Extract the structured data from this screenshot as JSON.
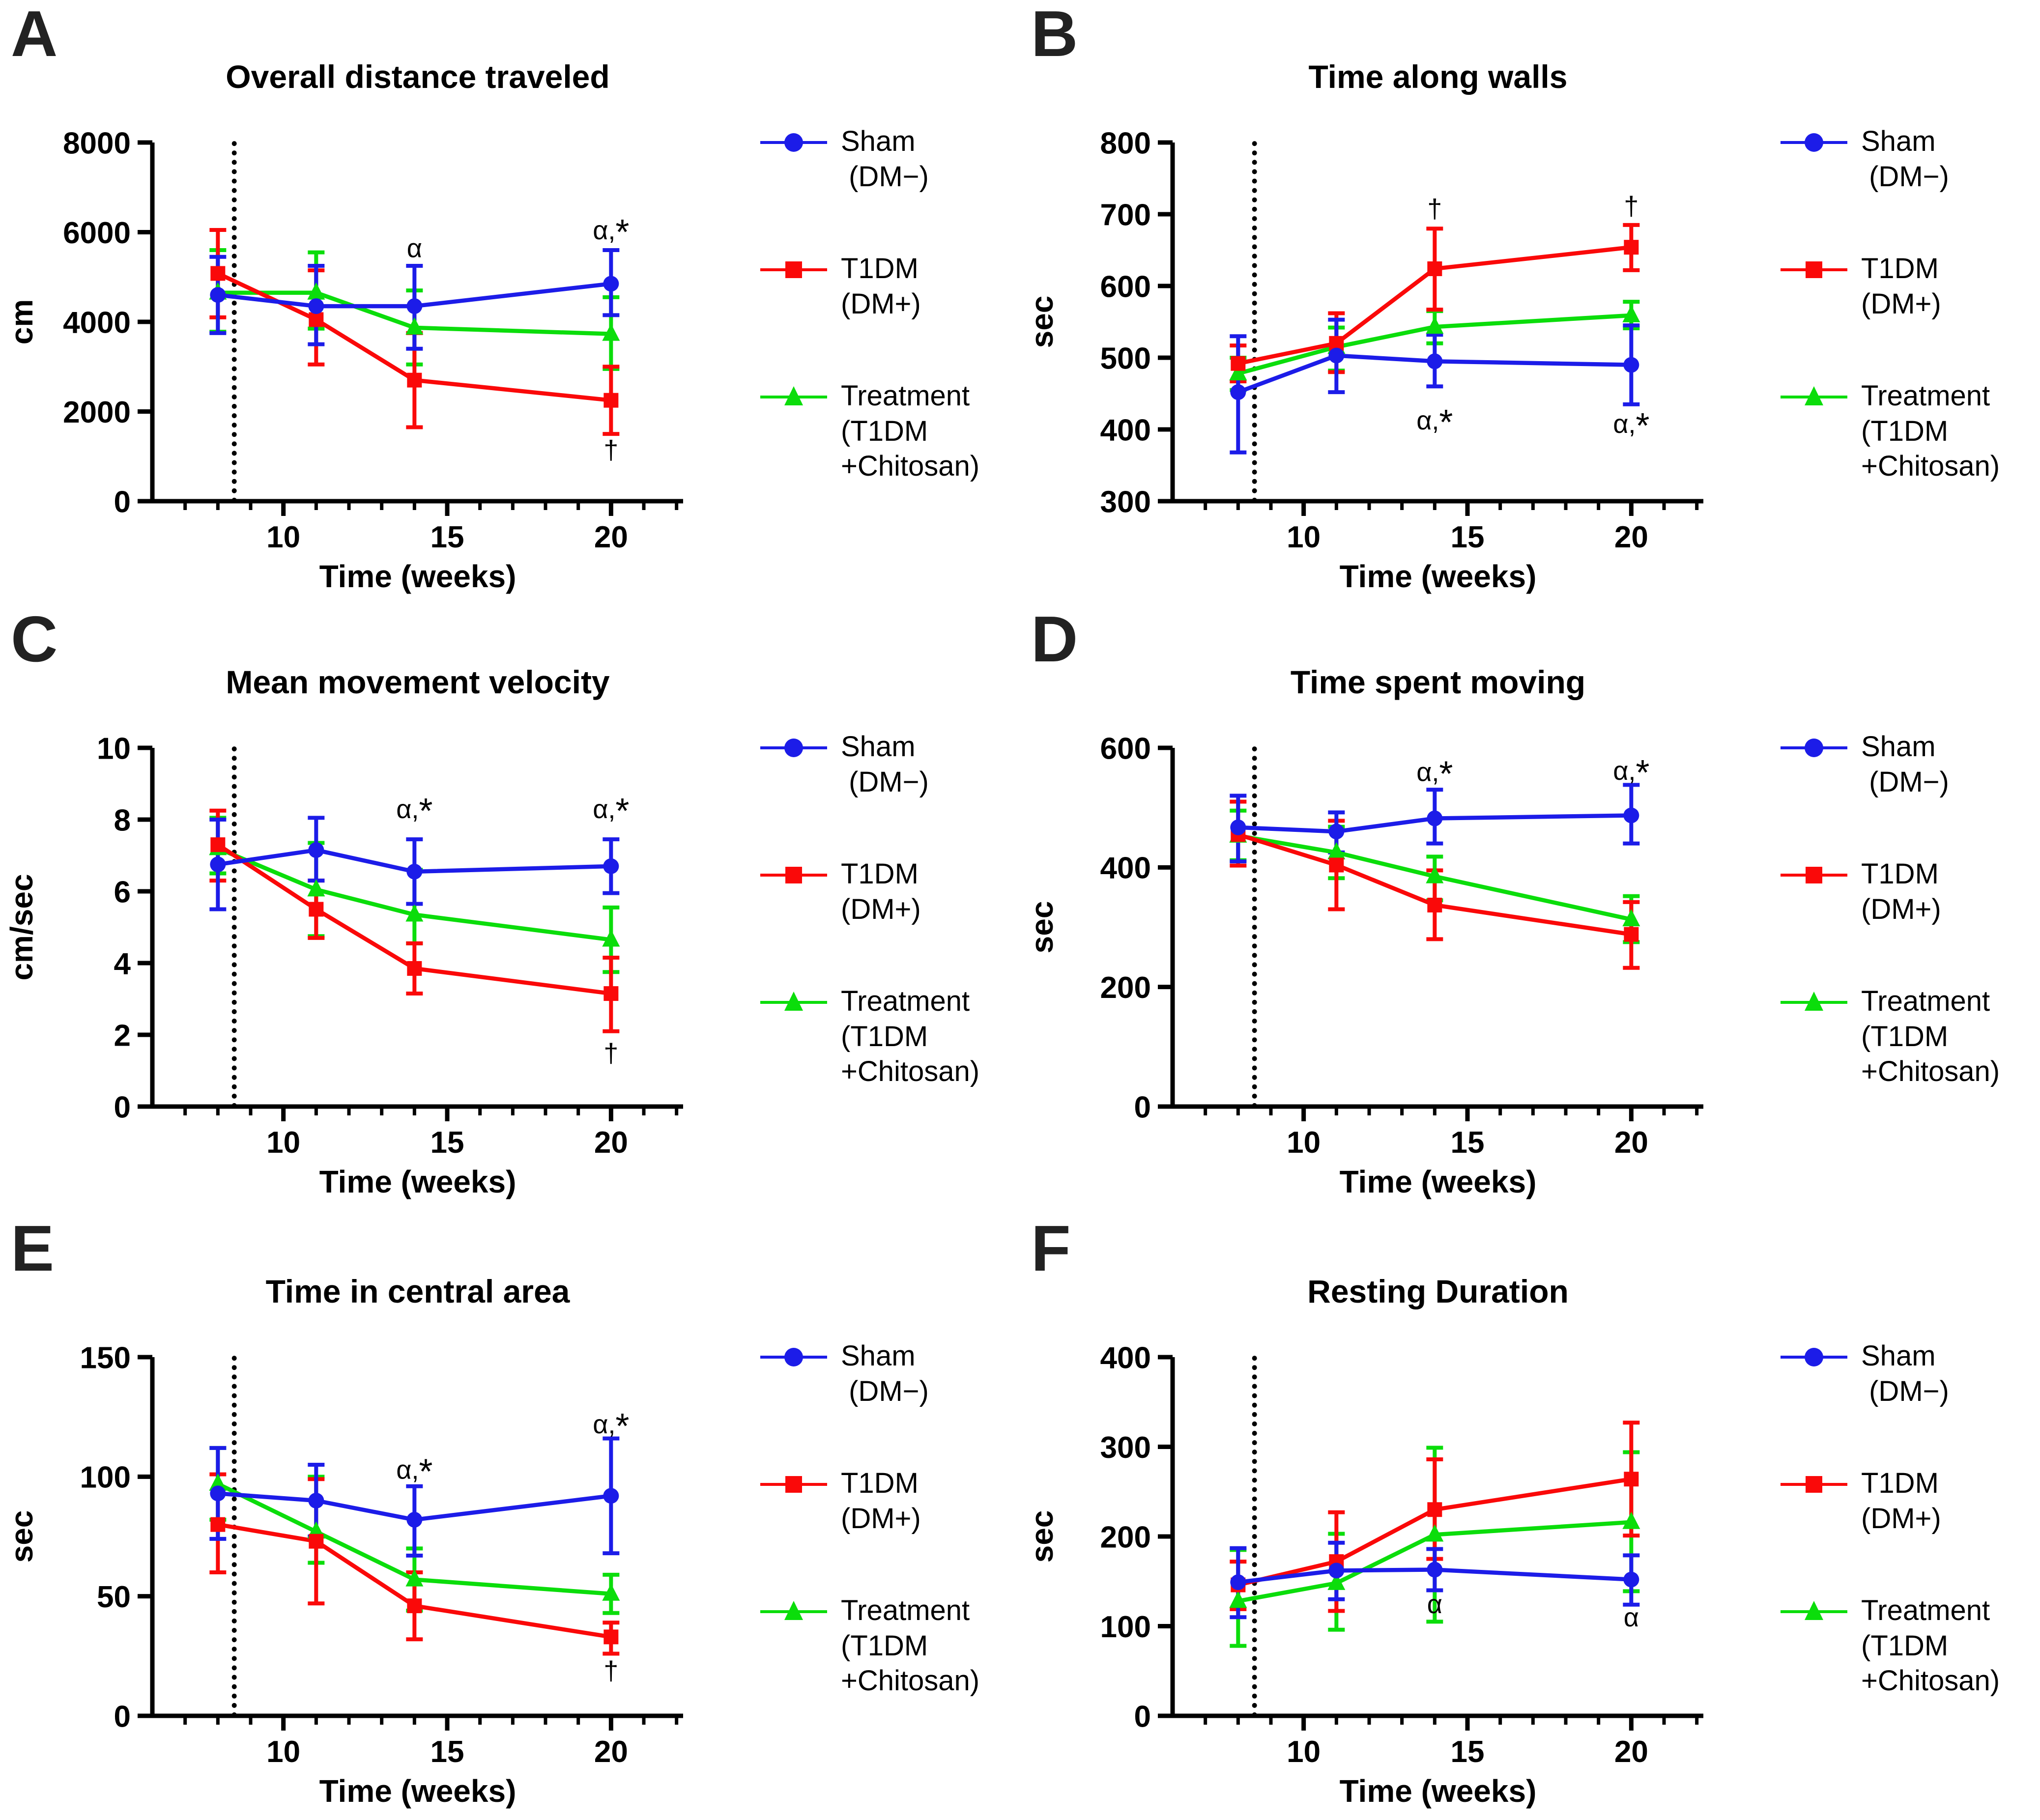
{
  "figure": {
    "background": "#ffffff",
    "axis_x": {
      "label": "Time (weeks)",
      "lim": [
        6.0,
        22.2
      ],
      "major_ticks": [
        10,
        15,
        20
      ],
      "minor_ticks": [
        7,
        8,
        9,
        11,
        12,
        13,
        14,
        16,
        17,
        18,
        19,
        21,
        22
      ],
      "dashed_line_x": 8.5
    },
    "colors": {
      "sham": "#1c1ce8",
      "t1dm": "#fa0909",
      "treatment": "#0bdd0b",
      "axis": "#000000"
    },
    "legend": {
      "position": "right",
      "entries": [
        {
          "id": "sham",
          "marker": "circle",
          "color": "#1c1ce8",
          "label_lines": [
            "Sham",
            " (DM−)"
          ]
        },
        {
          "id": "t1dm",
          "marker": "square",
          "color": "#fa0909",
          "label_lines": [
            "T1DM",
            "(DM+)"
          ]
        },
        {
          "id": "treatment",
          "marker": "triangle",
          "color": "#0bdd0b",
          "label_lines": [
            "Treatment",
            "(T1DM",
            "+Chitosan)"
          ]
        }
      ]
    }
  },
  "chart_data": [
    {
      "type": "line",
      "panel": "A",
      "title": "Overall distance traveled",
      "xlabel": "Time (weeks)",
      "ylabel": "cm",
      "ylim": [
        0,
        8000
      ],
      "yticks": [
        0,
        2000,
        4000,
        6000,
        8000
      ],
      "x": [
        8,
        11,
        14,
        20
      ],
      "series": [
        {
          "id": "sham",
          "name": "Sham (DM−)",
          "color": "#1c1ce8",
          "marker": "circle",
          "values": [
            4600,
            4350,
            4350,
            4850
          ],
          "err_lo": [
            3750,
            3500,
            3400,
            4150
          ],
          "err_hi": [
            5450,
            5250,
            5250,
            5600
          ]
        },
        {
          "id": "t1dm",
          "name": "T1DM (DM+)",
          "color": "#fa0909",
          "marker": "square",
          "values": [
            5080,
            4050,
            2700,
            2250
          ],
          "err_lo": [
            4100,
            3050,
            1650,
            1500
          ],
          "err_hi": [
            6050,
            5150,
            3750,
            3000
          ]
        },
        {
          "id": "treatment",
          "name": "Treatment (T1DM +Chitosan)",
          "color": "#0bdd0b",
          "marker": "triangle",
          "values": [
            4650,
            4650,
            3870,
            3730
          ],
          "err_lo": [
            3780,
            3850,
            3050,
            2950
          ],
          "err_hi": [
            5600,
            5550,
            4700,
            4550
          ]
        }
      ],
      "annotations": [
        {
          "x": 14,
          "y": 5650,
          "text": "α"
        },
        {
          "x": 20,
          "y": 6050,
          "text": "α,*"
        },
        {
          "x": 20,
          "y": 1150,
          "text": "†"
        }
      ]
    },
    {
      "type": "line",
      "panel": "B",
      "title": "Time along walls",
      "xlabel": "Time (weeks)",
      "ylabel": "sec",
      "ylim": [
        300,
        800
      ],
      "yticks": [
        300,
        400,
        500,
        600,
        700,
        800
      ],
      "x": [
        8,
        11,
        14,
        20
      ],
      "series": [
        {
          "id": "sham",
          "name": "Sham (DM−)",
          "color": "#1c1ce8",
          "marker": "circle",
          "values": [
            452,
            503,
            495,
            490
          ],
          "err_lo": [
            368,
            452,
            460,
            435
          ],
          "err_hi": [
            530,
            553,
            532,
            545
          ]
        },
        {
          "id": "t1dm",
          "name": "T1DM (DM+)",
          "color": "#fa0909",
          "marker": "square",
          "values": [
            492,
            520,
            624,
            654
          ],
          "err_lo": [
            467,
            480,
            567,
            622
          ],
          "err_hi": [
            517,
            562,
            680,
            685
          ]
        },
        {
          "id": "treatment",
          "name": "Treatment (T1DM +Chitosan)",
          "color": "#0bdd0b",
          "marker": "triangle",
          "values": [
            478,
            515,
            543,
            559
          ],
          "err_lo": [
            455,
            482,
            520,
            541
          ],
          "err_hi": [
            500,
            542,
            565,
            578
          ]
        }
      ],
      "annotations": [
        {
          "x": 14,
          "y": 708,
          "text": "†"
        },
        {
          "x": 20,
          "y": 712,
          "text": "†"
        },
        {
          "x": 14,
          "y": 413,
          "text": "α,*"
        },
        {
          "x": 20,
          "y": 408,
          "text": "α,*"
        }
      ]
    },
    {
      "type": "line",
      "panel": "C",
      "title": "Mean movement velocity",
      "xlabel": "Time (weeks)",
      "ylabel": "cm/sec",
      "ylim": [
        0,
        10
      ],
      "yticks": [
        0,
        2,
        4,
        6,
        8,
        10
      ],
      "x": [
        8,
        11,
        14,
        20
      ],
      "series": [
        {
          "id": "sham",
          "name": "Sham (DM−)",
          "color": "#1c1ce8",
          "marker": "circle",
          "values": [
            6.75,
            7.15,
            6.55,
            6.7
          ],
          "err_lo": [
            5.5,
            6.3,
            5.65,
            5.95
          ],
          "err_hi": [
            8.0,
            8.05,
            7.45,
            7.45
          ]
        },
        {
          "id": "t1dm",
          "name": "T1DM (DM+)",
          "color": "#fa0909",
          "marker": "square",
          "values": [
            7.3,
            5.5,
            3.85,
            3.15
          ],
          "err_lo": [
            6.3,
            4.7,
            3.15,
            2.1
          ],
          "err_hi": [
            8.25,
            6.3,
            4.55,
            4.15
          ]
        },
        {
          "id": "treatment",
          "name": "Treatment (T1DM +Chitosan)",
          "color": "#0bdd0b",
          "marker": "triangle",
          "values": [
            7.2,
            6.05,
            5.35,
            4.65
          ],
          "err_lo": [
            6.5,
            4.75,
            4.55,
            3.75
          ],
          "err_hi": [
            8.05,
            7.35,
            6.6,
            5.55
          ]
        }
      ],
      "annotations": [
        {
          "x": 14,
          "y": 8.3,
          "text": "α,*"
        },
        {
          "x": 20,
          "y": 8.3,
          "text": "α,*"
        },
        {
          "x": 20,
          "y": 1.5,
          "text": "†"
        }
      ]
    },
    {
      "type": "line",
      "panel": "D",
      "title": "Time spent moving",
      "xlabel": "Time (weeks)",
      "ylabel": "sec",
      "ylim": [
        0,
        600
      ],
      "yticks": [
        0,
        200,
        400,
        600
      ],
      "x": [
        8,
        11,
        14,
        20
      ],
      "series": [
        {
          "id": "sham",
          "name": "Sham (DM−)",
          "color": "#1c1ce8",
          "marker": "circle",
          "values": [
            467,
            460,
            482,
            487
          ],
          "err_lo": [
            410,
            425,
            440,
            440
          ],
          "err_hi": [
            520,
            492,
            530,
            538
          ]
        },
        {
          "id": "t1dm",
          "name": "T1DM (DM+)",
          "color": "#fa0909",
          "marker": "square",
          "values": [
            455,
            404,
            337,
            288
          ],
          "err_lo": [
            403,
            330,
            280,
            232
          ],
          "err_hi": [
            510,
            478,
            395,
            342
          ]
        },
        {
          "id": "treatment",
          "name": "Treatment (T1DM +Chitosan)",
          "color": "#0bdd0b",
          "marker": "triangle",
          "values": [
            453,
            425,
            385,
            313
          ],
          "err_lo": [
            412,
            382,
            345,
            275
          ],
          "err_hi": [
            495,
            468,
            418,
            352
          ]
        }
      ],
      "annotations": [
        {
          "x": 14,
          "y": 560,
          "text": "α,*"
        },
        {
          "x": 20,
          "y": 562,
          "text": "α,*"
        }
      ]
    },
    {
      "type": "line",
      "panel": "E",
      "title": "Time in central area",
      "xlabel": "Time (weeks)",
      "ylabel": "sec",
      "ylim": [
        0,
        150
      ],
      "yticks": [
        0,
        50,
        100,
        150
      ],
      "x": [
        8,
        11,
        14,
        20
      ],
      "series": [
        {
          "id": "sham",
          "name": "Sham (DM−)",
          "color": "#1c1ce8",
          "marker": "circle",
          "values": [
            93,
            90,
            82,
            92
          ],
          "err_lo": [
            74,
            75,
            67,
            68
          ],
          "err_hi": [
            112,
            105,
            96,
            116
          ]
        },
        {
          "id": "t1dm",
          "name": "T1DM (DM+)",
          "color": "#fa0909",
          "marker": "square",
          "values": [
            80,
            73,
            46,
            33
          ],
          "err_lo": [
            60,
            47,
            32,
            26
          ],
          "err_hi": [
            101,
            99,
            60,
            39
          ]
        },
        {
          "id": "treatment",
          "name": "Treatment (T1DM +Chitosan)",
          "color": "#0bdd0b",
          "marker": "triangle",
          "values": [
            97,
            77,
            57,
            51
          ],
          "err_lo": [
            82,
            64,
            44,
            43
          ],
          "err_hi": [
            112,
            100,
            70,
            59
          ]
        }
      ],
      "annotations": [
        {
          "x": 14,
          "y": 103,
          "text": "α,*"
        },
        {
          "x": 20,
          "y": 122,
          "text": "α,*"
        },
        {
          "x": 20,
          "y": 19,
          "text": "†"
        }
      ]
    },
    {
      "type": "line",
      "panel": "F",
      "title": "Resting Duration",
      "xlabel": "Time (weeks)",
      "ylabel": "sec",
      "ylim": [
        0,
        400
      ],
      "yticks": [
        0,
        100,
        200,
        300,
        400
      ],
      "x": [
        8,
        11,
        14,
        20
      ],
      "series": [
        {
          "id": "sham",
          "name": "Sham (DM−)",
          "color": "#1c1ce8",
          "marker": "circle",
          "values": [
            149,
            162,
            163,
            152
          ],
          "err_lo": [
            110,
            130,
            140,
            124
          ],
          "err_hi": [
            187,
            193,
            186,
            179
          ]
        },
        {
          "id": "t1dm",
          "name": "T1DM (DM+)",
          "color": "#fa0909",
          "marker": "square",
          "values": [
            146,
            172,
            230,
            264
          ],
          "err_lo": [
            119,
            117,
            175,
            201
          ],
          "err_hi": [
            172,
            227,
            286,
            327
          ]
        },
        {
          "id": "treatment",
          "name": "Treatment (T1DM +Chitosan)",
          "color": "#0bdd0b",
          "marker": "triangle",
          "values": [
            128,
            148,
            202,
            216
          ],
          "err_lo": [
            78,
            96,
            105,
            139
          ],
          "err_hi": [
            185,
            203,
            299,
            294
          ]
        }
      ],
      "annotations": [
        {
          "x": 14,
          "y": 125,
          "text": "α"
        },
        {
          "x": 20,
          "y": 110,
          "text": "α"
        }
      ]
    }
  ]
}
